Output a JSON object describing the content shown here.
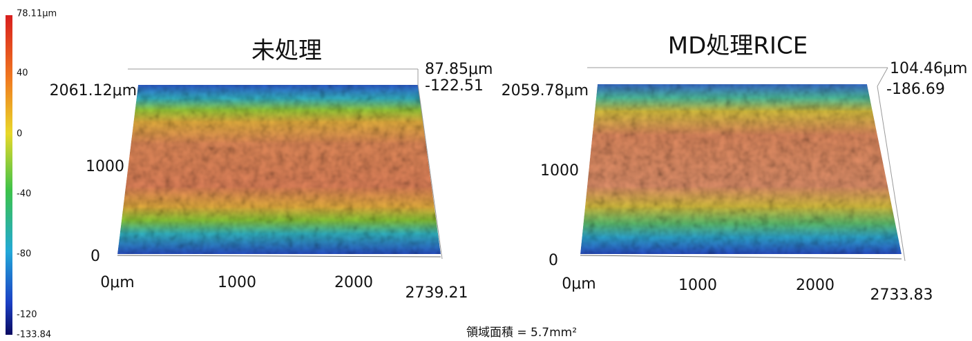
{
  "colorbar": {
    "labels": [
      "78.11μm",
      "40",
      "0",
      "-40",
      "-80",
      "-120",
      "-133.84"
    ]
  },
  "panels": [
    {
      "title": "未処理",
      "z_top": "87.85μm",
      "z_bottom": "-122.51",
      "y_labels": [
        "2061.12μm",
        "1000",
        "0"
      ],
      "x_labels": [
        "0μm",
        "1000",
        "2000",
        "2739.21"
      ]
    },
    {
      "title": "MD処理RICE",
      "z_top": "104.46μm",
      "z_bottom": "-186.69",
      "y_labels": [
        "2059.78μm",
        "1000",
        "0"
      ],
      "x_labels": [
        "0μm",
        "1000",
        "2000",
        "2733.83"
      ]
    }
  ],
  "footer": {
    "text": "領域面積 = 5.7mm²"
  }
}
